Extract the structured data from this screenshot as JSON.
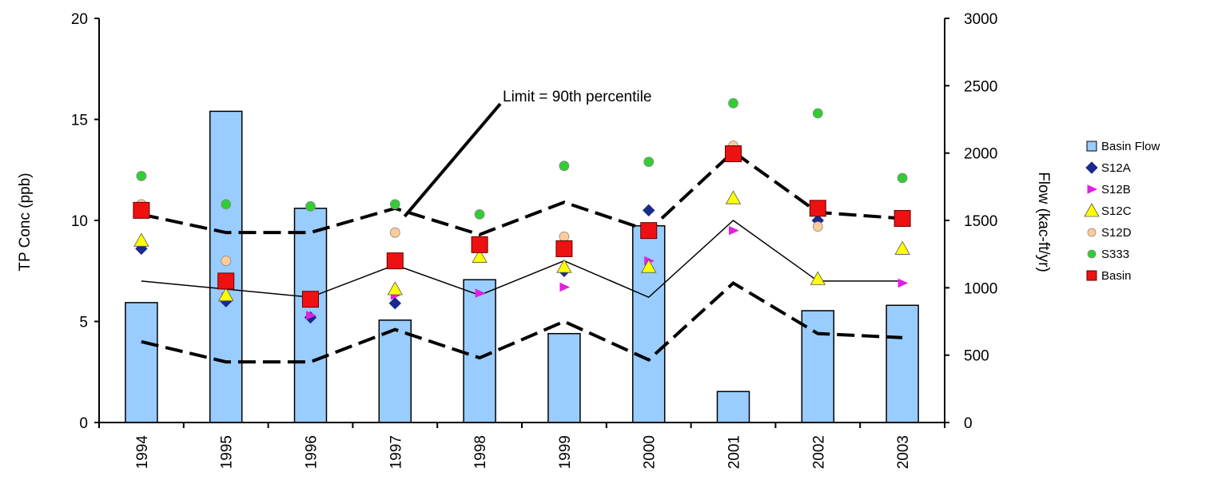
{
  "chart_data": {
    "type": "bar",
    "title": "",
    "categories": [
      "1994",
      "1995",
      "1996",
      "1997",
      "1998",
      "1999",
      "2000",
      "2001",
      "2002",
      "2003"
    ],
    "y_left": {
      "label": "TP Conc (ppb)",
      "range": [
        0,
        20
      ],
      "ticks": [
        "0",
        "5",
        "10",
        "15",
        "20"
      ]
    },
    "y_right": {
      "label": "Flow (kac-ft/yr)",
      "range": [
        0,
        3000
      ],
      "ticks": [
        "0",
        "500",
        "1000",
        "1500",
        "2000",
        "2500",
        "3000"
      ]
    },
    "bars": {
      "name": "Basin Flow",
      "axis": "right",
      "color": "#99ccff",
      "values": [
        890,
        2310,
        1590,
        760,
        1060,
        660,
        1460,
        230,
        830,
        870
      ]
    },
    "lines": [
      {
        "name": "upper",
        "style": "dashed",
        "values": [
          10.3,
          9.4,
          9.4,
          10.6,
          9.3,
          10.9,
          9.5,
          13.4,
          10.4,
          10.1
        ]
      },
      {
        "name": "middle",
        "style": "solid",
        "values": [
          7.0,
          null,
          6.2,
          7.8,
          6.3,
          8.0,
          6.2,
          10.0,
          7.0,
          7.0
        ]
      },
      {
        "name": "lower",
        "style": "dashed",
        "values": [
          4.0,
          3.0,
          3.0,
          4.6,
          3.2,
          5.0,
          3.1,
          6.9,
          4.4,
          4.2
        ]
      }
    ],
    "series": [
      {
        "name": "S12A",
        "marker": "diamond",
        "color": "#1a2a8c",
        "values": [
          8.6,
          6.0,
          5.2,
          5.9,
          null,
          7.5,
          10.5,
          null,
          10.0,
          null
        ]
      },
      {
        "name": "S12B",
        "marker": "tri-right",
        "color": "#e020e0",
        "values": [
          null,
          6.2,
          5.3,
          6.3,
          6.4,
          6.7,
          8.0,
          9.5,
          null,
          6.9
        ]
      },
      {
        "name": "S12C",
        "marker": "triangle",
        "color": "#ffff00",
        "values": [
          9.0,
          6.3,
          null,
          6.6,
          8.2,
          7.7,
          7.7,
          11.1,
          7.1,
          8.6
        ]
      },
      {
        "name": "S12D",
        "marker": "circle",
        "color": "#ffcc99",
        "values": [
          10.8,
          8.0,
          null,
          9.4,
          null,
          9.2,
          null,
          13.7,
          9.7,
          null
        ]
      },
      {
        "name": "S333",
        "marker": "circle",
        "color": "#33cc33",
        "values": [
          12.2,
          10.8,
          10.7,
          10.8,
          10.3,
          12.7,
          12.9,
          15.8,
          15.3,
          12.1
        ]
      },
      {
        "name": "Basin",
        "marker": "square",
        "color": "#ee1111",
        "values": [
          10.5,
          7.0,
          6.1,
          8.0,
          8.8,
          8.6,
          9.5,
          13.3,
          10.6,
          10.1
        ]
      }
    ],
    "legend_position": "right",
    "annotation": {
      "text": "Limit = 90th percentile",
      "points_to": "1997"
    },
    "grid": false
  }
}
